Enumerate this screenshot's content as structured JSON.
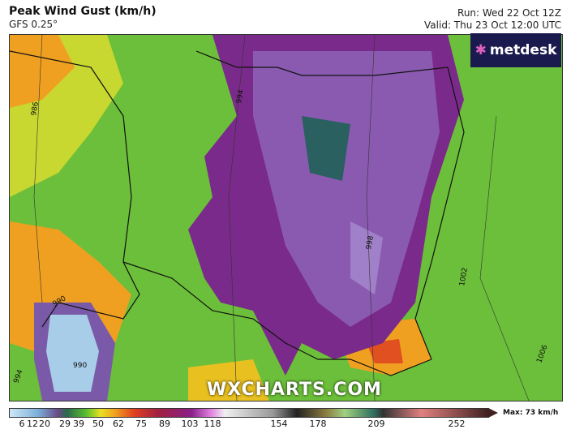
{
  "header": {
    "title": "Peak Wind Gust (km/h)",
    "model": "GFS 0.25°",
    "run": "Run: Wed 22 Oct 12Z",
    "valid": "Valid: Thu 23 Oct 12:00 UTC"
  },
  "logo": {
    "text": "metdesk"
  },
  "watermark": "WXCHARTS.COM",
  "map": {
    "isobar_labels": [
      "986",
      "994",
      "998",
      "1002",
      "1006",
      "990",
      "990",
      "994"
    ]
  },
  "legend": {
    "ticks": [
      "6",
      "12",
      "20",
      "29",
      "39",
      "50",
      "62",
      "75",
      "89",
      "103",
      "118",
      "154",
      "178",
      "209",
      "252"
    ],
    "max_label": "Max: 73 km/h"
  }
}
